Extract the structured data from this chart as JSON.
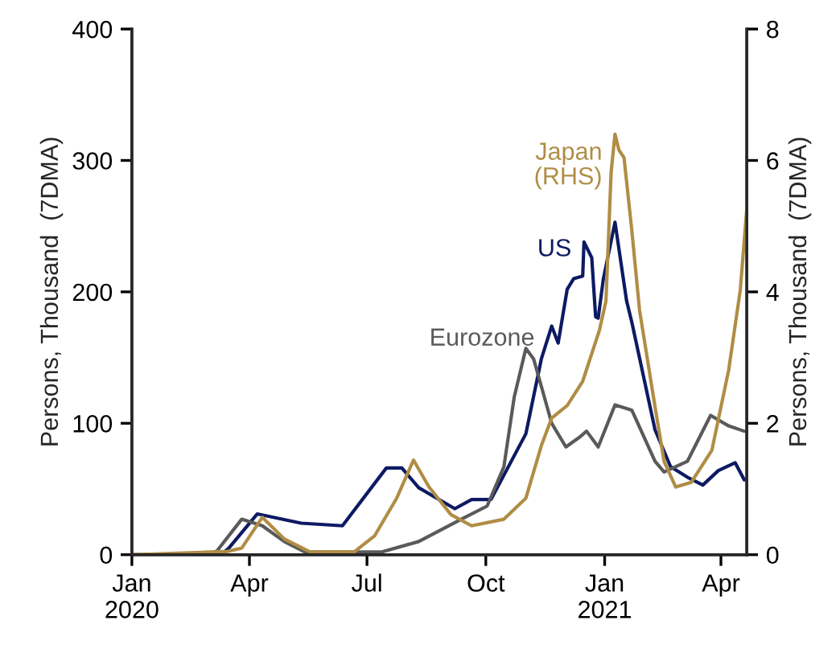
{
  "chart_data": {
    "type": "line",
    "ylabel": "Persons, Thousand  (7DMA)",
    "y2label": "Persons, Thousand  (7DMA)",
    "xlim": [
      "2020-01-01",
      "2021-04-21"
    ],
    "xticks": [
      {
        "value": "2020-01-01",
        "label": "Jan\n2020"
      },
      {
        "value": "2020-04-01",
        "label": "Apr"
      },
      {
        "value": "2020-07-01",
        "label": "Jul"
      },
      {
        "value": "2020-10-01",
        "label": "Oct"
      },
      {
        "value": "2021-01-01",
        "label": "Jan\n2021"
      },
      {
        "value": "2021-04-01",
        "label": "Apr"
      }
    ],
    "ylim": [
      0,
      400
    ],
    "yticks": [
      0,
      100,
      200,
      300,
      400
    ],
    "y2lim": [
      0,
      8
    ],
    "y2ticks": [
      0,
      2,
      4,
      6,
      8
    ],
    "grid": false,
    "legend": false,
    "marker": "none",
    "line_style": "solid",
    "series": [
      {
        "name": "US",
        "color": "#0d1a63",
        "x": [
          "2020-01-01",
          "2020-03-10",
          "2020-03-16",
          "2020-04-07",
          "2020-05-11",
          "2020-06-12",
          "2020-07-16",
          "2020-07-28",
          "2020-08-10",
          "2020-09-07",
          "2020-09-20",
          "2020-10-05",
          "2020-11-01",
          "2020-11-13",
          "2020-11-21",
          "2020-11-26",
          "2020-12-03",
          "2020-12-08",
          "2020-12-15",
          "2020-12-16",
          "2020-12-22",
          "2020-12-25",
          "2020-12-27",
          "2020-12-31",
          "2021-01-09",
          "2021-01-18",
          "2021-01-22",
          "2021-02-09",
          "2021-02-21",
          "2021-03-06",
          "2021-03-18",
          "2021-03-30",
          "2021-04-12",
          "2021-04-19"
        ],
        "values": [
          0,
          0,
          5,
          31,
          24,
          22,
          66,
          66,
          51,
          35,
          42,
          42,
          92,
          149,
          174,
          161,
          202,
          210,
          212,
          238,
          226,
          181,
          180,
          210,
          253,
          193,
          177,
          95,
          67,
          59,
          53,
          64,
          70,
          57
        ]
      },
      {
        "name": "Eurozone",
        "color": "#5a5a5a",
        "x": [
          "2020-01-01",
          "2020-03-01",
          "2020-03-07",
          "2020-03-26",
          "2020-04-11",
          "2020-04-28",
          "2020-05-14",
          "2020-07-12",
          "2020-08-10",
          "2020-09-12",
          "2020-10-02",
          "2020-10-15",
          "2020-10-23",
          "2020-11-01",
          "2020-11-07",
          "2020-11-13",
          "2020-11-21",
          "2020-12-02",
          "2020-12-12",
          "2020-12-18",
          "2020-12-27",
          "2021-01-09",
          "2021-01-22",
          "2021-02-09",
          "2021-02-16",
          "2021-03-06",
          "2021-03-24",
          "2021-04-07",
          "2021-04-19"
        ],
        "values": [
          0,
          0,
          3,
          27,
          22,
          10,
          2,
          2,
          10,
          27,
          37,
          67,
          120,
          157,
          149,
          128,
          100,
          82,
          89,
          94,
          82,
          114,
          110,
          71,
          63,
          71,
          106,
          98,
          94
        ]
      },
      {
        "name": "Japan\n(RHS)",
        "color": "#b08d45",
        "axis": "y2",
        "x": [
          "2020-01-01",
          "2020-03-15",
          "2020-03-26",
          "2020-04-11",
          "2020-04-28",
          "2020-05-18",
          "2020-06-21",
          "2020-07-07",
          "2020-07-24",
          "2020-08-06",
          "2020-08-18",
          "2020-09-04",
          "2020-09-20",
          "2020-10-15",
          "2020-11-01",
          "2020-11-13",
          "2020-11-21",
          "2020-12-03",
          "2020-12-15",
          "2020-12-28",
          "2021-01-02",
          "2021-01-06",
          "2021-01-09",
          "2021-01-12",
          "2021-01-16",
          "2021-01-22",
          "2021-01-28",
          "2021-02-09",
          "2021-02-16",
          "2021-02-25",
          "2021-03-09",
          "2021-03-25",
          "2021-04-07",
          "2021-04-16",
          "2021-04-21"
        ],
        "values": [
          0,
          0.05,
          0.1,
          0.57,
          0.24,
          0.04,
          0.04,
          0.29,
          0.86,
          1.44,
          1.03,
          0.61,
          0.44,
          0.54,
          0.86,
          1.66,
          2.08,
          2.27,
          2.64,
          3.42,
          3.86,
          5.82,
          6.4,
          6.16,
          6.04,
          4.94,
          3.72,
          2.25,
          1.42,
          1.03,
          1.1,
          1.59,
          2.81,
          4.03,
          5.26
        ]
      }
    ]
  }
}
